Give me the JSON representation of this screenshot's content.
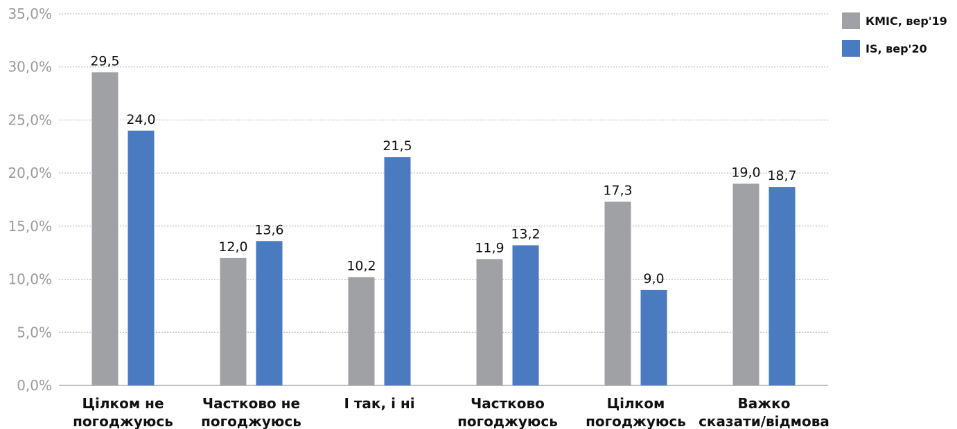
{
  "chart_data": {
    "type": "bar",
    "categories": [
      [
        "Цілком не",
        "погоджуюсь"
      ],
      [
        "Частково не",
        "погоджуюсь"
      ],
      [
        "І так, і ні"
      ],
      [
        "Частково",
        "погоджуюсь"
      ],
      [
        "Цілком",
        "погоджуюсь"
      ],
      [
        "Важко",
        "сказати/відмова"
      ]
    ],
    "series": [
      {
        "name": "КМІС, вер'19",
        "color": "#a0a1a5",
        "values": [
          29.5,
          12.0,
          10.2,
          11.9,
          17.3,
          19.0
        ],
        "labels": [
          "29,5",
          "12,0",
          "10,2",
          "11,9",
          "17,3",
          "19,0"
        ]
      },
      {
        "name": "IS, вер'20",
        "color": "#4a7abf",
        "values": [
          24.0,
          13.6,
          21.5,
          13.2,
          9.0,
          18.7
        ],
        "labels": [
          "24,0",
          "13,6",
          "21,5",
          "13,2",
          "9,0",
          "18,7"
        ]
      }
    ],
    "ylim": [
      0,
      35
    ],
    "yticks": [
      "0,0%",
      "5,0%",
      "10,0%",
      "15,0%",
      "20,0%",
      "25,0%",
      "30,0%",
      "35,0%"
    ],
    "ytick_values": [
      0,
      5,
      10,
      15,
      20,
      25,
      30,
      35
    ],
    "grid": true,
    "legend_position": "top-right"
  }
}
